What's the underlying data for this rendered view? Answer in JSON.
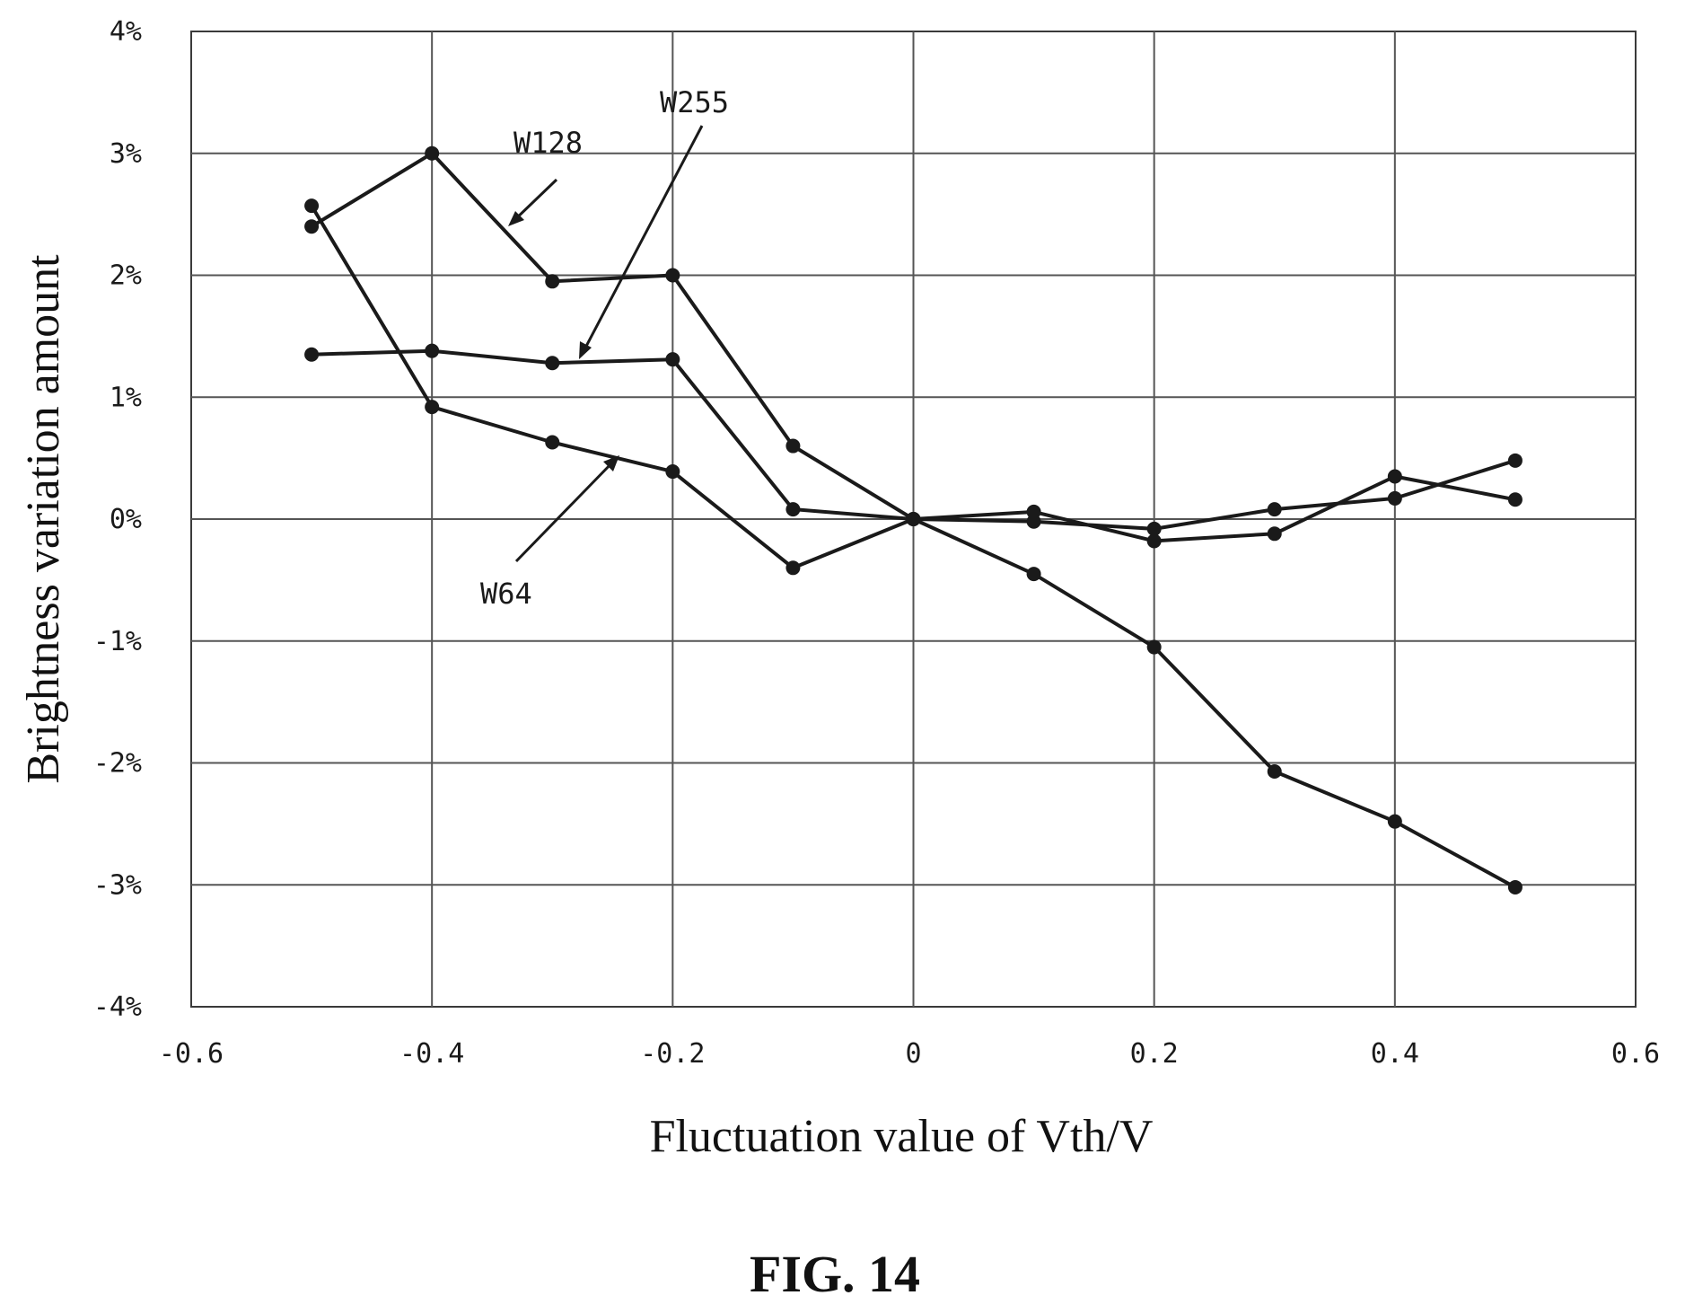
{
  "chart_data": {
    "type": "line",
    "xlabel": "Fluctuation value of Vth/V",
    "ylabel": "Brightness variation amount",
    "xlim": [
      -0.6,
      0.6
    ],
    "ylim": [
      -4,
      4
    ],
    "x_ticks": [
      "-0.6",
      "-0.4",
      "-0.2",
      "0",
      "0.2",
      "0.4",
      "0.6"
    ],
    "y_ticks": [
      "4%",
      "3%",
      "2%",
      "1%",
      "0%",
      "-1%",
      "-2%",
      "-3%",
      "-4%"
    ],
    "y_unit": "%",
    "grid": true,
    "legend": "none (series labeled with arrow annotations)",
    "colors": {
      "line": "#1a1a1a",
      "grid": "#555555",
      "background": "#ffffff"
    },
    "x": [
      -0.5,
      -0.4,
      -0.3,
      -0.2,
      -0.1,
      0,
      0.1,
      0.2,
      0.3,
      0.4,
      0.5
    ],
    "series": [
      {
        "name": "W128",
        "values": [
          2.4,
          3.0,
          1.95,
          2.0,
          0.6,
          0,
          -0.02,
          -0.08,
          0.08,
          0.17,
          0.48
        ]
      },
      {
        "name": "W255",
        "values": [
          1.35,
          1.38,
          1.28,
          1.31,
          0.08,
          0,
          0.06,
          -0.18,
          -0.12,
          0.35,
          0.16
        ]
      },
      {
        "name": "W64",
        "values": [
          2.57,
          0.92,
          0.63,
          0.39,
          -0.4,
          0,
          -0.45,
          -1.05,
          -2.07,
          -2.48,
          -3.02
        ]
      }
    ],
    "annotations": [
      "W128",
      "W255",
      "W64"
    ]
  },
  "caption": "FIG. 14"
}
